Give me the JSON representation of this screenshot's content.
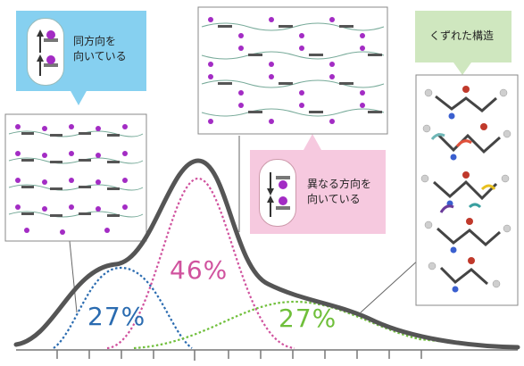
{
  "labels": {
    "same_direction": "同方向を\n向いている",
    "different_direction": "異なる方向を\n向いている",
    "broken_structure": "くずれた構造"
  },
  "percentages": {
    "left": "27%",
    "center": "46%",
    "right": "27%"
  },
  "colors": {
    "left_peak": "#2a6bb0",
    "center_peak": "#d0529e",
    "right_peak": "#6fbf3a",
    "total_curve": "#555555",
    "blue_callout": "#86d0f0",
    "pink_callout": "#f6c9df",
    "green_callout": "#cfe7bf",
    "atom_purple": "#a32cc4"
  }
}
